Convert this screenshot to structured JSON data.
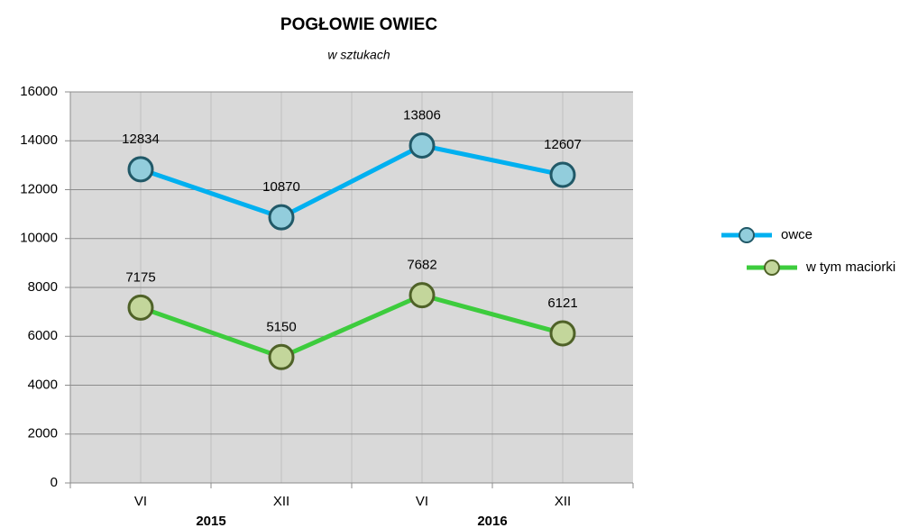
{
  "chart_data": {
    "type": "line",
    "title": "POGŁOWIE OWIEC",
    "subtitle": "w sztukach",
    "categories": [
      "VI",
      "XII",
      "VI",
      "XII"
    ],
    "group_labels": [
      "2015",
      "2016"
    ],
    "series": [
      {
        "name": "owce",
        "color": "#00b0f0",
        "marker_color": "#92cddc",
        "marker_edge": "#215968",
        "values": [
          12834,
          10870,
          13806,
          12607
        ]
      },
      {
        "name": "w tym maciorki",
        "color": "#3dcc3d",
        "marker_color": "#c3d69b",
        "marker_edge": "#4f6228",
        "values": [
          7175,
          5150,
          7682,
          6121
        ]
      }
    ],
    "ylim": [
      0,
      16000
    ],
    "yticks": [
      0,
      2000,
      4000,
      6000,
      8000,
      10000,
      12000,
      14000,
      16000
    ],
    "grid": true,
    "legend": "right"
  }
}
